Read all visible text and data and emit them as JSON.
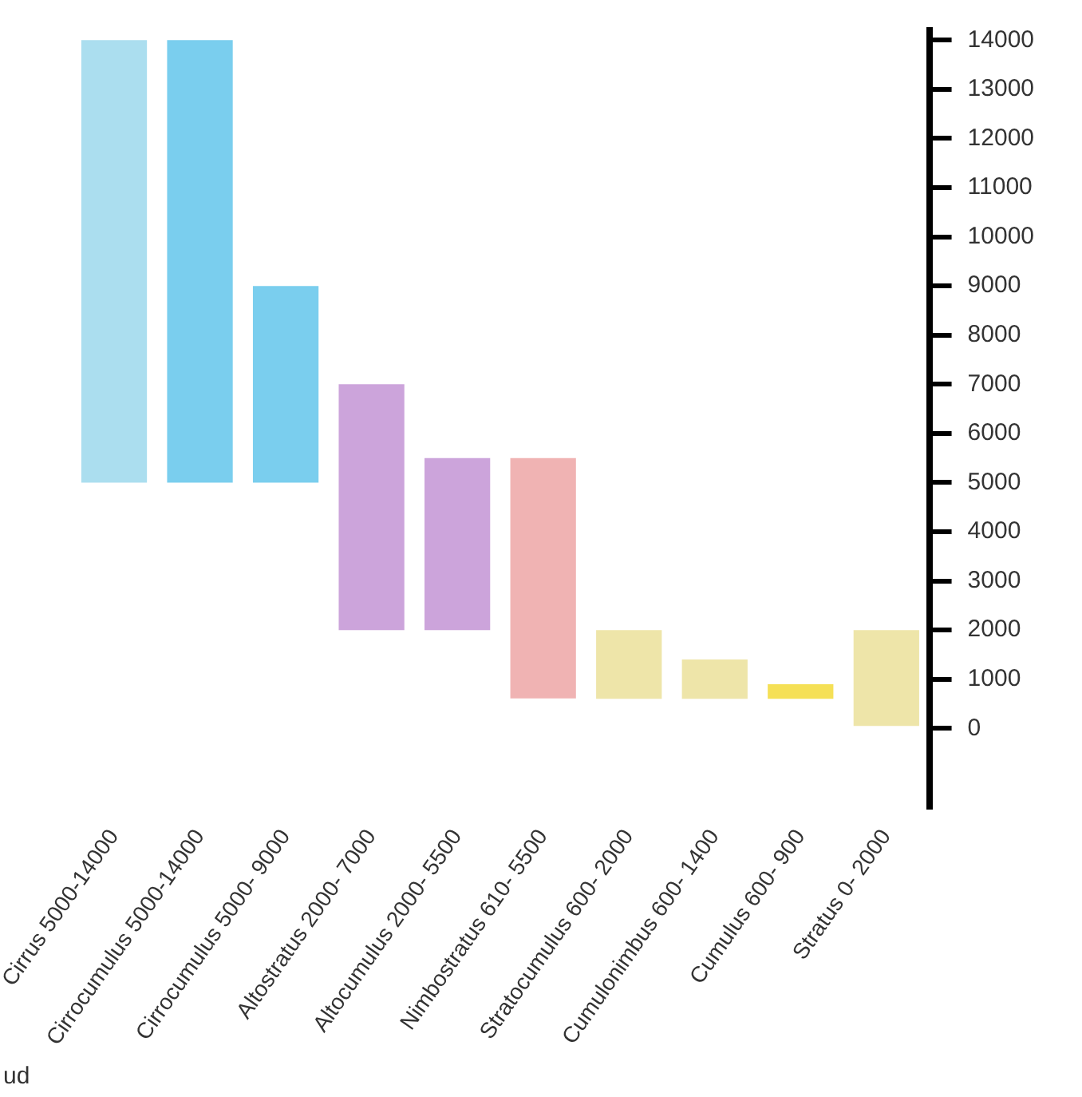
{
  "chart_data": {
    "type": "bar",
    "categories": [
      "Cirrus 5000-14000",
      "Cirrocumulus 5000-14000",
      "Cirrocumulus 5000- 9000",
      "Altostratus 2000- 7000",
      "Altocumulus 2000- 5500",
      "Nimbostratus 610- 5500",
      "Stratocumulus 600- 2000",
      "Cumulonimbus 600- 1400",
      "Cumulus 600- 900",
      "Stratus 0- 2000"
    ],
    "base": [
      5000,
      5000,
      5000,
      2000,
      2000,
      610,
      600,
      600,
      600,
      0
    ],
    "values": [
      9000,
      9000,
      4000,
      5000,
      3500,
      4890,
      1400,
      800,
      300,
      2000
    ],
    "colors": [
      "#8fd3ea",
      "#4dbde8",
      "#4dbde8",
      "#bb86cf",
      "#bb86cf",
      "#eb9a9a",
      "#e8dc8c",
      "#e8dc8c",
      "#f2d51e",
      "#e8dc8c"
    ],
    "ylim": [
      -1600,
      14200
    ],
    "yticks": [
      0,
      1000,
      2000,
      3000,
      4000,
      5000,
      6000,
      7000,
      8000,
      9000,
      10000,
      11000,
      12000,
      13000,
      14000
    ],
    "grid": false,
    "legend": false,
    "annotations": [
      "ud"
    ]
  }
}
